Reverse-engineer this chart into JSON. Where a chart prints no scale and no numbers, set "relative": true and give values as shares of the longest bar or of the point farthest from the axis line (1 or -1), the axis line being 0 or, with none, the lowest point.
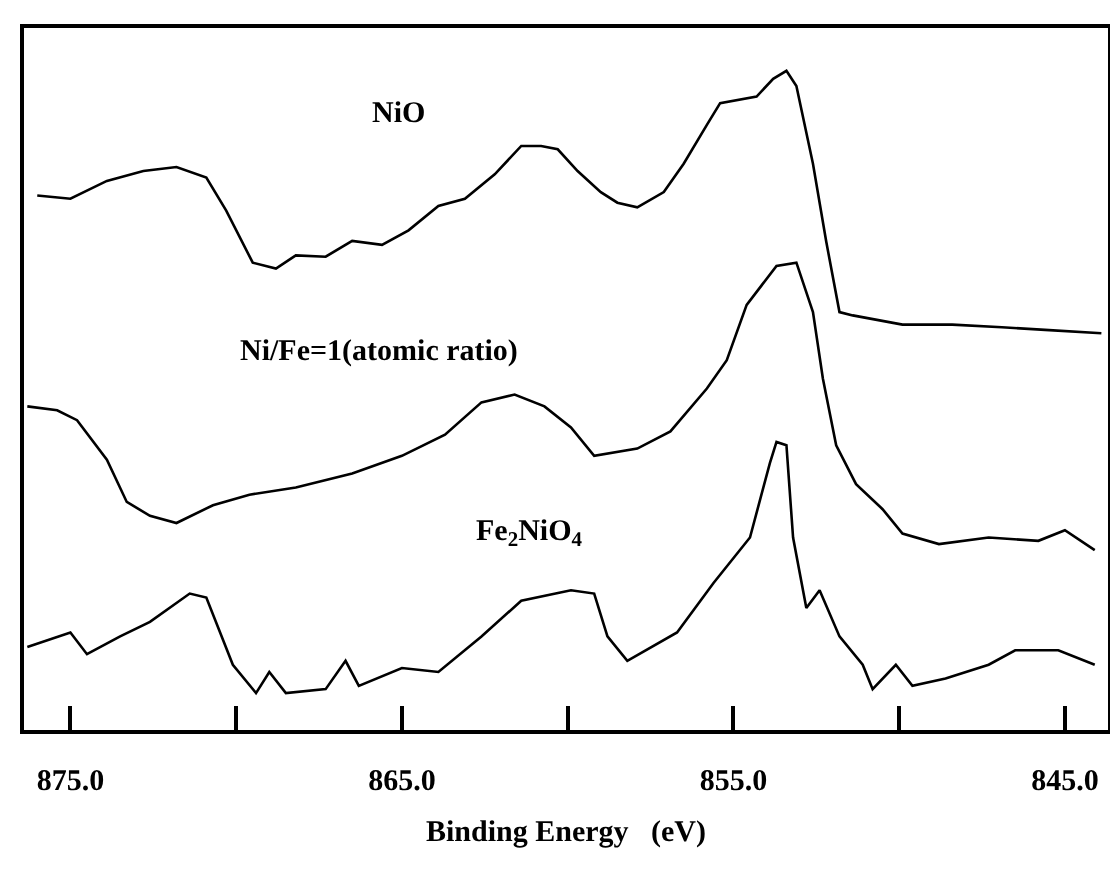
{
  "chart_data": {
    "type": "line",
    "relative": true,
    "xlabel": "Binding Energy   (eV)",
    "xlim": [
      876.4,
      843.7
    ],
    "xticks": [
      {
        "value": 875,
        "label": "875.0"
      },
      {
        "value": 870,
        "label": null
      },
      {
        "value": 865,
        "label": "865.0"
      },
      {
        "value": 860,
        "label": null
      },
      {
        "value": 855,
        "label": "855.0"
      },
      {
        "value": 850,
        "label": null
      },
      {
        "value": 845,
        "label": "845.0"
      }
    ],
    "grid": false,
    "legend": false,
    "marker": "none",
    "line_style": "solid",
    "series": [
      {
        "name": "NiO",
        "color": "#000000",
        "x": [
          876.0,
          875.0,
          873.9,
          872.8,
          871.8,
          870.9,
          870.3,
          869.5,
          868.8,
          868.2,
          867.3,
          866.5,
          865.6,
          864.8,
          863.9,
          863.1,
          862.2,
          861.4,
          860.8,
          860.3,
          859.7,
          859.0,
          858.5,
          857.9,
          857.1,
          856.5,
          855.8,
          855.4,
          854.3,
          853.8,
          853.4,
          853.1,
          852.6,
          852.2,
          851.8,
          851.4,
          849.9,
          848.4,
          846.9,
          845.6,
          843.9
        ],
        "values": [
          0.811,
          0.806,
          0.833,
          0.848,
          0.854,
          0.838,
          0.788,
          0.709,
          0.7,
          0.72,
          0.718,
          0.742,
          0.736,
          0.758,
          0.795,
          0.806,
          0.843,
          0.886,
          0.886,
          0.881,
          0.848,
          0.816,
          0.8,
          0.793,
          0.816,
          0.859,
          0.918,
          0.951,
          0.961,
          0.988,
          1.0,
          0.977,
          0.859,
          0.741,
          0.634,
          0.629,
          0.615,
          0.615,
          0.611,
          0.607,
          0.602
        ]
      },
      {
        "name": "Ni/Fe=1(atomic ratio)",
        "color": "#000000",
        "x": [
          876.3,
          875.4,
          874.8,
          873.9,
          873.3,
          872.6,
          871.8,
          870.7,
          869.6,
          868.2,
          866.5,
          865.0,
          863.7,
          862.6,
          861.6,
          860.7,
          859.9,
          859.2,
          857.9,
          856.9,
          855.8,
          855.2,
          854.6,
          853.7,
          853.1,
          852.6,
          852.3,
          851.9,
          851.3,
          850.5,
          849.9,
          848.8,
          847.3,
          845.8,
          845.0,
          844.1
        ],
        "values": [
          0.491,
          0.485,
          0.47,
          0.41,
          0.346,
          0.325,
          0.314,
          0.341,
          0.357,
          0.368,
          0.389,
          0.416,
          0.448,
          0.497,
          0.509,
          0.491,
          0.459,
          0.416,
          0.427,
          0.453,
          0.518,
          0.561,
          0.645,
          0.704,
          0.709,
          0.634,
          0.533,
          0.432,
          0.373,
          0.335,
          0.298,
          0.282,
          0.292,
          0.287,
          0.303,
          0.273
        ]
      },
      {
        "name": "Fe$_{2}$NiO$_{4}$",
        "color": "#000000",
        "x": [
          876.3,
          875.0,
          874.5,
          873.5,
          872.6,
          871.4,
          870.9,
          870.1,
          869.4,
          869.0,
          868.5,
          867.3,
          866.7,
          866.3,
          865.0,
          863.9,
          862.6,
          861.4,
          859.9,
          859.2,
          858.8,
          858.2,
          856.7,
          855.6,
          854.5,
          853.9,
          853.7,
          853.4,
          853.2,
          852.8,
          852.4,
          851.8,
          851.1,
          850.8,
          850.1,
          849.6,
          848.6,
          847.3,
          846.5,
          845.2,
          844.1
        ],
        "values": [
          0.126,
          0.148,
          0.115,
          0.142,
          0.164,
          0.207,
          0.201,
          0.099,
          0.056,
          0.088,
          0.056,
          0.062,
          0.105,
          0.067,
          0.094,
          0.088,
          0.142,
          0.196,
          0.212,
          0.207,
          0.142,
          0.105,
          0.148,
          0.223,
          0.292,
          0.405,
          0.437,
          0.432,
          0.292,
          0.185,
          0.212,
          0.142,
          0.099,
          0.062,
          0.099,
          0.067,
          0.078,
          0.099,
          0.121,
          0.121,
          0.099
        ]
      }
    ]
  }
}
